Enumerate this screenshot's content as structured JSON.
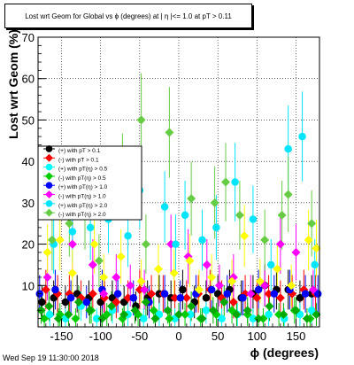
{
  "chart_data": {
    "type": "scatter",
    "title": "Lost wrt Geom for Global vs ϕ (degrees) at | η |<= 1.0 at pT > 0.11",
    "xlabel": "ϕ (degrees)",
    "ylabel": "Lost wrt Geom (%)",
    "xlim": [
      -180,
      180
    ],
    "ylim": [
      0,
      70
    ],
    "x_ticks": [
      -150,
      -100,
      -50,
      0,
      50,
      100,
      150
    ],
    "y_ticks": [
      10,
      20,
      30,
      40,
      50,
      60,
      70
    ],
    "grid": true,
    "legend_placement": "middle-left",
    "series": [
      {
        "name": "(+) with pT > 0.1",
        "color": "#000000",
        "marker": "circle",
        "x": [
          -175,
          -160,
          -145,
          -130,
          -115,
          -100,
          -85,
          -70,
          -55,
          -40,
          -25,
          -10,
          5,
          20,
          35,
          50,
          65,
          80,
          95,
          110,
          125,
          140,
          155,
          170
        ],
        "y": [
          6,
          7,
          6,
          8,
          7,
          6,
          7,
          6,
          5,
          7,
          8,
          7,
          9,
          6,
          7,
          8,
          9,
          7,
          8,
          10,
          9,
          9,
          7,
          8
        ]
      },
      {
        "name": "(-) with pT > 0.1",
        "color": "#ff0000",
        "marker": "diamond",
        "x": [
          -170,
          -155,
          -140,
          -125,
          -110,
          -95,
          -80,
          -65,
          -50,
          -35,
          -20,
          -5,
          10,
          25,
          40,
          55,
          70,
          85,
          100,
          115,
          130,
          145,
          160,
          175
        ],
        "y": [
          9,
          8,
          8,
          7,
          8,
          7,
          6,
          7,
          9,
          8,
          8,
          7,
          7,
          8,
          9,
          7,
          6,
          8,
          7,
          8,
          7,
          8,
          9,
          8
        ]
      },
      {
        "name": "(+) with pT(η) > 0.5",
        "color": "#00ffff",
        "marker": "circle",
        "x": [
          -165,
          -145,
          -125,
          -105,
          -85,
          -65,
          -45,
          -25,
          -5,
          15,
          35,
          55,
          75,
          95,
          115,
          135,
          155,
          170
        ],
        "y": [
          3,
          2,
          5,
          2,
          4,
          3,
          2,
          3,
          2,
          3,
          4,
          2,
          3,
          2,
          3,
          2,
          3,
          4
        ]
      },
      {
        "name": "(-) with pT(η) > 0.5",
        "color": "#00cc00",
        "marker": "diamond",
        "x": [
          -172,
          -152,
          -132,
          -112,
          -92,
          -72,
          -52,
          -32,
          -12,
          8,
          28,
          48,
          68,
          88,
          108,
          128,
          148,
          168
        ],
        "y": [
          2,
          3,
          2,
          4,
          3,
          2,
          3,
          4,
          2,
          3,
          2,
          3,
          4,
          3,
          2,
          3,
          4,
          2
        ]
      },
      {
        "name": "(+) with pT(η) > 1.0",
        "color": "#0000ff",
        "marker": "circle",
        "x": [
          -178,
          -158,
          -138,
          -118,
          -98,
          -78,
          -58,
          -38,
          -18,
          2,
          22,
          42,
          62,
          82,
          102,
          122,
          142,
          162,
          178
        ],
        "y": [
          8,
          9,
          7,
          6,
          9,
          8,
          7,
          6,
          8,
          7,
          8,
          9,
          8,
          7,
          9,
          8,
          9,
          8,
          8
        ]
      },
      {
        "name": "(-) with pT(η) > 1.0",
        "color": "#ff00ff",
        "marker": "diamond",
        "x": [
          -168,
          -136,
          -110,
          -96,
          -80,
          -62,
          -44,
          -10,
          12,
          36,
          52,
          70,
          92,
          110,
          130,
          150,
          172
        ],
        "y": [
          12,
          20,
          15,
          8,
          12,
          10,
          9,
          20,
          17,
          15,
          10,
          12,
          8,
          10,
          20,
          18,
          9
        ]
      },
      {
        "name": "(+) with pT(η) > 2.0",
        "color": "#00e5ff",
        "marker": "circle",
        "x": [
          -160,
          -136,
          -113,
          -90,
          -65,
          -50,
          -18,
          -4,
          8,
          30,
          48,
          72,
          95,
          118,
          140,
          158,
          174
        ],
        "y": [
          20,
          23,
          24,
          26,
          22,
          33,
          29,
          20,
          27,
          21,
          24,
          35,
          26,
          15,
          43,
          46,
          15
        ]
      },
      {
        "name": "(-) with pT(η) > 2.0",
        "color": "#66cc44",
        "marker": "diamond",
        "x": [
          -162,
          -140,
          -120,
          -102,
          -72,
          -48,
          -42,
          -12,
          16,
          46,
          60,
          78,
          110,
          132,
          140,
          170
        ],
        "y": [
          21,
          25,
          27,
          16,
          37,
          50,
          20,
          47,
          31,
          30,
          35,
          27,
          21,
          27,
          32,
          25
        ]
      },
      {
        "name": "",
        "color": "#ffff00",
        "marker": "diamond",
        "x": [
          -168,
          -152,
          -136,
          -108,
          -96,
          -74,
          -48,
          -26,
          -6,
          14,
          26,
          42,
          68,
          84,
          104,
          126,
          144,
          166,
          176
        ],
        "y": [
          18,
          21,
          13,
          20,
          12,
          17,
          11,
          14,
          13,
          16,
          9,
          12,
          11,
          22,
          11,
          14,
          10,
          21,
          19
        ]
      },
      {
        "name": "",
        "color": "#00aa00",
        "marker": "diamond",
        "x": [
          -176,
          -166,
          -154,
          -141,
          -128,
          -114,
          -98,
          -86,
          -70,
          -56,
          -42,
          -30,
          -14,
          0,
          16,
          30,
          44,
          58,
          74,
          88,
          102,
          116,
          134,
          150,
          164,
          176
        ],
        "y": [
          4,
          5,
          2,
          3,
          6,
          4,
          2,
          5,
          3,
          4,
          6,
          2,
          4,
          3,
          5,
          2,
          4,
          6,
          3,
          4,
          2,
          5,
          3,
          4,
          2,
          3
        ]
      }
    ]
  },
  "timestamp": "Wed Sep 19 11:30:00 2018"
}
